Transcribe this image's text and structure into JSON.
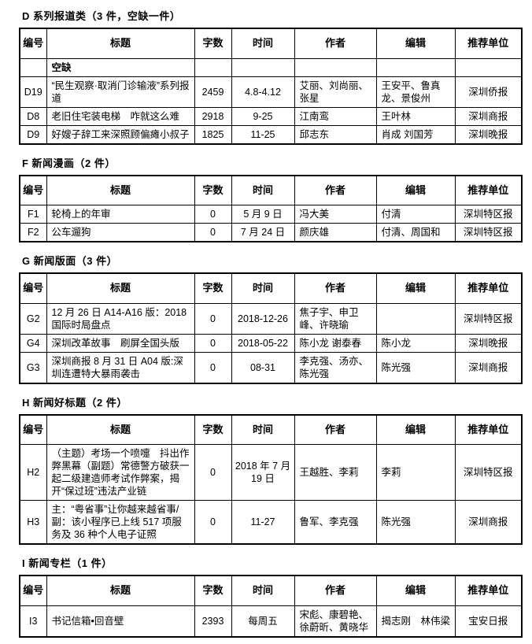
{
  "document": {
    "background": "#ffffff",
    "text_color": "#000000",
    "table_border_color": "#000000"
  },
  "columns": [
    {
      "key": "id",
      "name": "number",
      "label": "编号"
    },
    {
      "key": "title",
      "name": "title",
      "label": "标题"
    },
    {
      "key": "words",
      "name": "word-count",
      "label": "字数"
    },
    {
      "key": "time",
      "name": "date",
      "label": "时间"
    },
    {
      "key": "authors",
      "name": "author",
      "label": "作者"
    },
    {
      "key": "editors",
      "name": "editor",
      "label": "编辑"
    },
    {
      "key": "unit",
      "name": "recommending-unit",
      "label": "推荐单位"
    }
  ],
  "sections": [
    {
      "title": "D 系列报道类（3 件，空缺一件）",
      "rows": [
        {
          "id": "",
          "title": "空缺",
          "words": "",
          "time": "",
          "authors": "",
          "editors": "",
          "unit": "",
          "emphasis": true
        },
        {
          "id": "D19",
          "title": "“民生观察·取消门诊输液”系列报道",
          "words": "2459",
          "time": "4.8-4.12",
          "authors": "艾丽、刘尚丽、张星",
          "editors": "王安平、鲁真龙、景俊州",
          "unit": "深圳侨报"
        },
        {
          "id": "D8",
          "title": "老旧住宅装电梯　咋就这么难",
          "words": "2918",
          "time": "9-25",
          "authors": "江南鸾",
          "editors": "王叶林",
          "unit": "深圳商报"
        },
        {
          "id": "D9",
          "title": "好嫂子辞工来深照顾偏瘫小叔子",
          "words": "1825",
          "time": "11-25",
          "authors": "邱志东",
          "editors": "肖成 刘国芳",
          "unit": "深圳晚报"
        }
      ]
    },
    {
      "title": "F 新闻漫画（2 件）",
      "rows": [
        {
          "id": "F1",
          "title": "轮椅上的年审",
          "words": "0",
          "time": "5 月 9 日",
          "authors": "冯大美",
          "editors": "付清",
          "unit": "深圳特区报"
        },
        {
          "id": "F2",
          "title": "公车遛狗",
          "words": "0",
          "time": "7 月 24 日",
          "authors": "颜庆雄",
          "editors": "付清、周国和",
          "unit": "深圳特区报"
        }
      ]
    },
    {
      "title": "G 新闻版面（3 件）",
      "rows": [
        {
          "id": "G2",
          "title": "12 月 26 日 A14-A16 版：2018 国际时局盘点",
          "words": "0",
          "time": "2018-12-26",
          "authors": "焦子宇、申卫峰、许晓瑜",
          "editors": "",
          "unit": "深圳特区报"
        },
        {
          "id": "G4",
          "title": "深圳改革故事　刷屏全国头版",
          "words": "0",
          "time": "2018-05-22",
          "authors": "陈小龙 谢泰春",
          "editors": "陈小龙",
          "unit": "深圳晚报"
        },
        {
          "id": "G3",
          "title": "深圳商报 8 月 31 日 A04 版:深圳连遭特大暴雨袭击",
          "words": "0",
          "time": "08-31",
          "authors": "李克强、汤亦、陈光强",
          "editors": "陈光强",
          "unit": "深圳商报"
        }
      ]
    },
    {
      "title": "H 新闻好标题（2 件）",
      "rows": [
        {
          "id": "H2",
          "title": "（主题）考场一个喷嚏　抖出作弊黑幕（副题）常德警方破获一起二级建造师考试作弊案，揭开“保过班”违法产业链",
          "words": "0",
          "time": "2018 年 7 月 19 日",
          "authors": "王越胜、李莉",
          "editors": "李莉",
          "unit": "深圳特区报"
        },
        {
          "id": "H3",
          "title": "主：“粤省事”让你越来越省事/副：该小程序已上线 517 项服务及 36 种个人电子证照",
          "words": "0",
          "time": "11-27",
          "authors": "鲁军、李克强",
          "editors": "陈光强",
          "unit": "深圳商报"
        }
      ]
    },
    {
      "title": "I 新闻专栏（1 件）",
      "rows": [
        {
          "id": "I3",
          "title": "书记信箱•回音壁",
          "words": "2393",
          "time": "每周五",
          "authors": "宋彪、康碧艳、徐蔚昕、黄晓华",
          "editors": "揭志刚　林伟梁",
          "unit": "宝安日报"
        }
      ]
    }
  ]
}
